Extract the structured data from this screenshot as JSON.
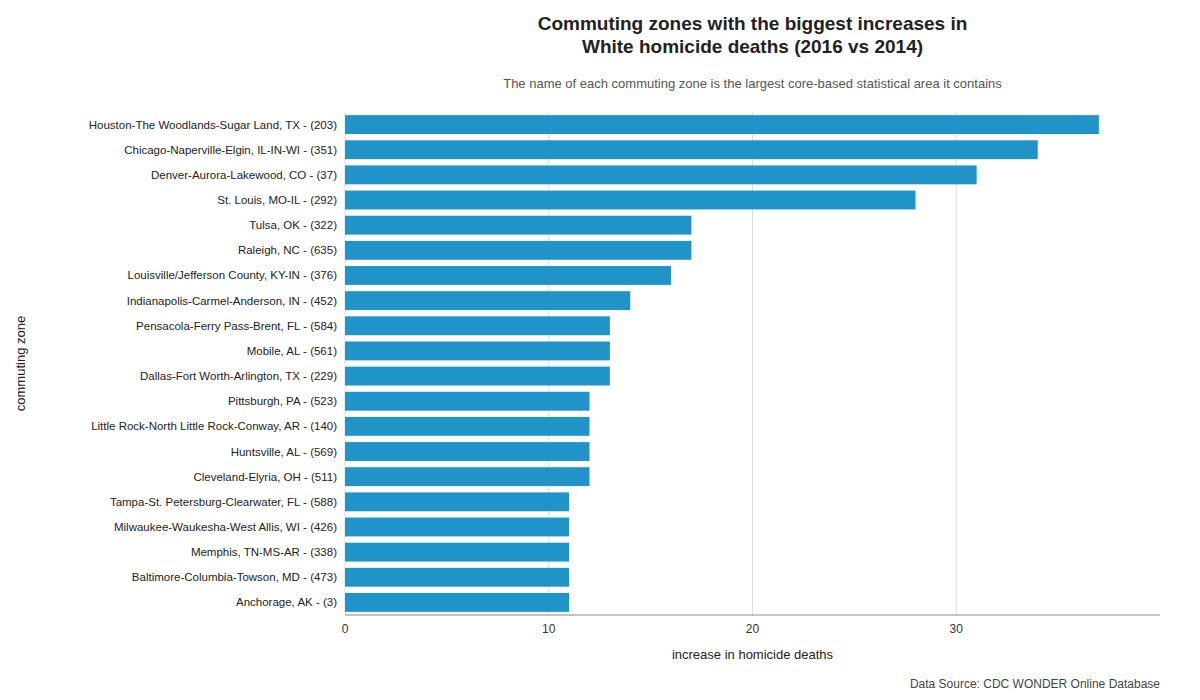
{
  "chart_data": {
    "type": "bar",
    "orientation": "horizontal",
    "title": "Commuting zones with the biggest increases in\nWhite homicide deaths (2016 vs 2014)",
    "subtitle": "The name of each commuting zone is the largest core-based statistical area it contains",
    "xlabel": "increase in homicide deaths",
    "ylabel": "commuting zone",
    "annotations": [
      "Data Source: CDC WONDER Online Database"
    ],
    "categories": [
      "Houston-The Woodlands-Sugar Land, TX - (203)",
      "Chicago-Naperville-Elgin, IL-IN-WI - (351)",
      "Denver-Aurora-Lakewood, CO - (37)",
      "St. Louis, MO-IL - (292)",
      "Tulsa, OK - (322)",
      "Raleigh, NC - (635)",
      "Louisville/Jefferson County, KY-IN - (376)",
      "Indianapolis-Carmel-Anderson, IN - (452)",
      "Pensacola-Ferry Pass-Brent, FL - (584)",
      "Mobile, AL - (561)",
      "Dallas-Fort Worth-Arlington, TX - (229)",
      "Pittsburgh, PA - (523)",
      "Little Rock-North Little Rock-Conway, AR - (140)",
      "Huntsville, AL - (569)",
      "Cleveland-Elyria, OH - (511)",
      "Tampa-St. Petersburg-Clearwater, FL - (588)",
      "Milwaukee-Waukesha-West Allis, WI - (426)",
      "Memphis, TN-MS-AR - (338)",
      "Baltimore-Columbia-Towson, MD - (473)",
      "Anchorage, AK - (3)"
    ],
    "values": [
      37,
      34,
      31,
      28,
      17,
      17,
      16,
      14,
      13,
      13,
      13,
      12,
      12,
      12,
      12,
      11,
      11,
      11,
      11,
      11
    ],
    "color": "#2094c8",
    "xlim": [
      0,
      40
    ],
    "xticks": [
      0,
      10,
      20,
      30
    ],
    "grid": true
  }
}
